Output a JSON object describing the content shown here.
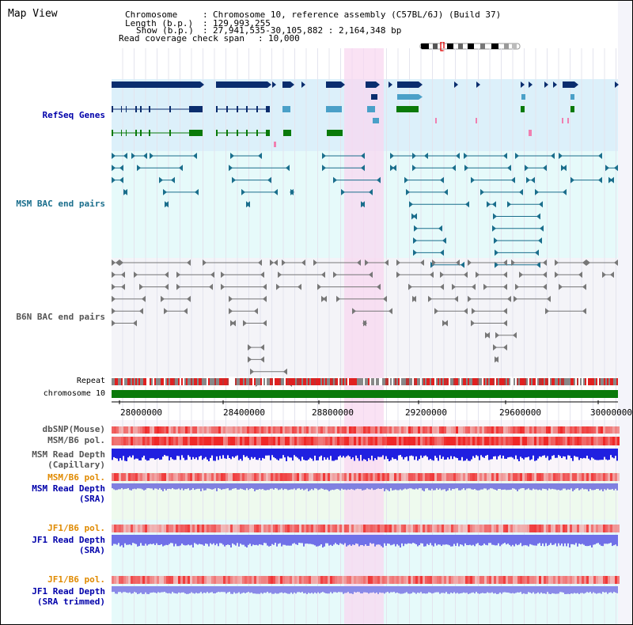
{
  "view_title": "Map View",
  "header": {
    "chromosome_label": "Chromosome",
    "chromosome_value": "Chromosome 10, reference assembly (C57BL/6J) (Build 37)",
    "length_label": "Length (b.p.)",
    "length_value": "129,993,255",
    "show_label": "Show (b.p.)",
    "show_value": "27,941,535-30,105,882 : 2,164,348 bp",
    "coverage_label": "Read coverage check span",
    "coverage_value": "10,000"
  },
  "tracks": {
    "refseq": "RefSeq Genes",
    "msm_bac": "MSM BAC end pairs",
    "b6n_bac": "B6N BAC end pairs",
    "repeat": "Repeat",
    "chromosome": "chromosome 10",
    "dbsnp": "dbSNP(Mouse)",
    "msm_b6_pol": "MSM/B6 pol.",
    "msm_depth_cap_1": "MSM Read Depth",
    "msm_depth_cap_2": "(Capillary)",
    "msm_b6_pol2": "MSM/B6 pol.",
    "msm_depth_sra_1": "MSM Read Depth",
    "msm_depth_sra_2": "(SRA)",
    "jf1_b6_pol": "JF1/B6 pol.",
    "jf1_depth_sra_1": "JF1 Read Depth",
    "jf1_depth_sra_2": "(SRA)",
    "jf1_b6_pol2": "JF1/B6 pol.",
    "jf1_depth_trim_1": "JF1 Read Depth",
    "jf1_depth_trim_2": "(SRA trimmed)"
  },
  "axis": {
    "ticks": [
      "28000000",
      "28400000",
      "28800000",
      "29200000",
      "29600000",
      "30000000"
    ]
  },
  "colors": {
    "refseq_bg": "#dcf0fa",
    "msm_bg": "#e6fafa",
    "b6n_bg": "#f4f4f8",
    "highlight": "#f8d8f0",
    "gene_dark": "#0a2d6e",
    "gene_blue": "#4aa0c8",
    "gene_green": "#0a7a0a",
    "msm_pair": "#1a6e8c",
    "b6n_pair": "#777777",
    "label_blue": "#0000aa",
    "label_teal": "#1a6e8c",
    "label_gray": "#555555",
    "label_orange": "#e08a00"
  }
}
